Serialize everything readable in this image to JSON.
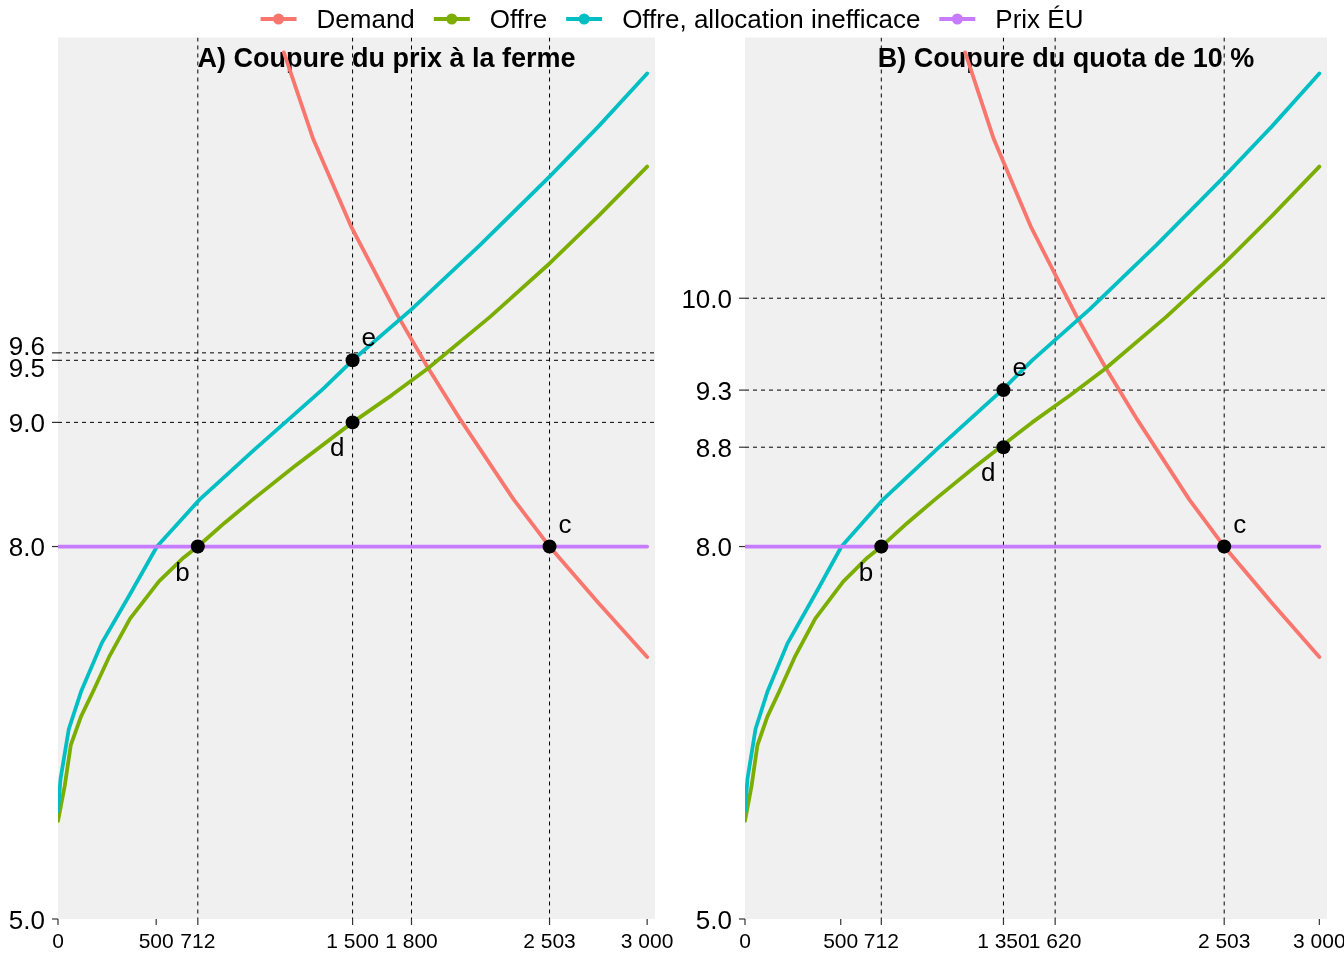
{
  "chart_data": [
    {
      "type": "line",
      "title": "A) Coupure du prix à la ferme",
      "legend": "top",
      "xlim": [
        0,
        3040
      ],
      "ylim": [
        5,
        12.1
      ],
      "xticks": [
        0,
        500,
        712,
        {
          "value": 1500,
          "label": "1 500"
        },
        {
          "value": 1800,
          "label": "1 800"
        },
        {
          "value": 2503,
          "label": "2 503"
        },
        {
          "value": 3000,
          "label": "3 000"
        }
      ],
      "yticks": [
        {
          "value": 5,
          "label": "5.0"
        },
        {
          "value": 8,
          "label": "8.0"
        },
        {
          "value": 9,
          "label": "9.0"
        },
        9.5,
        {
          "value": 9.56,
          "label": "9.6"
        }
      ],
      "series": [
        {
          "name": "Demand",
          "color": "#f8766d",
          "x": [
            1150,
            1300,
            1495,
            1730,
            1880,
            2050,
            2320,
            2503,
            2750,
            3000
          ],
          "values": [
            11.98,
            11.28,
            10.57,
            9.86,
            9.45,
            9.02,
            8.38,
            8.0,
            7.55,
            7.11
          ]
        },
        {
          "name": "Offre",
          "color": "#7cae00",
          "x": [
            0,
            34,
            65,
            117,
            178,
            263,
            367,
            514,
            639,
            712,
            848,
            993,
            1200,
            1500,
            1700,
            1880,
            2200,
            2503,
            2750,
            3000
          ],
          "values": [
            5.79,
            6.07,
            6.4,
            6.63,
            6.83,
            7.12,
            7.42,
            7.72,
            7.91,
            8.0,
            8.19,
            8.38,
            8.64,
            9.0,
            9.22,
            9.43,
            9.85,
            10.28,
            10.66,
            11.06
          ]
        },
        {
          "name": "Offre, allocation inefficace",
          "color": "#00bfc4",
          "x": [
            0,
            13,
            55,
            117,
            222,
            368,
            504,
            722,
            1000,
            1350,
            1500,
            1800,
            2150,
            2503,
            2750,
            3000
          ],
          "values": [
            5.87,
            6.13,
            6.53,
            6.83,
            7.22,
            7.62,
            8.0,
            8.38,
            8.78,
            9.27,
            9.5,
            9.91,
            10.43,
            10.98,
            11.38,
            11.81
          ]
        },
        {
          "name": "Prix ÉU",
          "color": "#c77cff",
          "x": [
            0,
            3000
          ],
          "values": [
            8,
            8
          ]
        },
        {
          "type": "scatter",
          "color": "#000000",
          "x": [
            712,
            2503,
            1500,
            1500
          ],
          "values": [
            8,
            8,
            9,
            9.5
          ]
        }
      ],
      "ref_lines": [
        {
          "axis": "x",
          "value": 712,
          "color": "#000000",
          "line_style": "dashed"
        },
        {
          "axis": "x",
          "value": 1500,
          "color": "#000000",
          "line_style": "dashed"
        },
        {
          "axis": "x",
          "value": 1800,
          "color": "#000000",
          "line_style": "dashed"
        },
        {
          "axis": "x",
          "value": 2503,
          "color": "#000000",
          "line_style": "dashed"
        },
        {
          "axis": "y",
          "value": 9,
          "color": "#000000",
          "line_style": "dashed"
        },
        {
          "axis": "y",
          "value": 9.5,
          "color": "#000000",
          "line_style": "dashed"
        },
        {
          "axis": "y",
          "value": 9.56,
          "color": "#000000",
          "line_style": "dashed"
        }
      ],
      "annotations": [
        {
          "text": "b",
          "x": 712,
          "y": 8
        },
        {
          "text": "c",
          "x": 2503,
          "y": 8
        },
        {
          "text": "d",
          "x": 1500,
          "y": 9
        },
        {
          "text": "e",
          "x": 1500,
          "y": 9.5
        }
      ]
    },
    {
      "type": "line",
      "title": "B) Coupure du quota de 10 %",
      "xlim": [
        0,
        3040
      ],
      "ylim": [
        5,
        12.1
      ],
      "xticks": [
        0,
        500,
        712,
        {
          "value": 1350,
          "label": "1 350"
        },
        {
          "value": 1620,
          "label": "1 620"
        },
        {
          "value": 2503,
          "label": "2 503"
        },
        {
          "value": 3000,
          "label": "3 000"
        }
      ],
      "yticks": [
        {
          "value": 5,
          "label": "5.0"
        },
        {
          "value": 8,
          "label": "8.0"
        },
        8.8,
        {
          "value": 9.26,
          "label": "9.3"
        },
        {
          "value": 10,
          "label": "10.0"
        }
      ],
      "series": [
        {
          "color": "#f8766d",
          "x": [
            1150,
            1300,
            1495,
            1730,
            1880,
            2050,
            2320,
            2503,
            2750,
            3000
          ],
          "values": [
            11.98,
            11.28,
            10.57,
            9.86,
            9.45,
            9.02,
            8.38,
            8.0,
            7.55,
            7.11
          ]
        },
        {
          "color": "#7cae00",
          "x": [
            0,
            34,
            65,
            117,
            178,
            263,
            367,
            514,
            639,
            712,
            848,
            993,
            1200,
            1500,
            1700,
            1880,
            2200,
            2503,
            2750,
            3000
          ],
          "values": [
            5.79,
            6.07,
            6.4,
            6.63,
            6.83,
            7.12,
            7.42,
            7.72,
            7.91,
            8.0,
            8.19,
            8.38,
            8.64,
            9.0,
            9.22,
            9.43,
            9.85,
            10.28,
            10.66,
            11.06
          ]
        },
        {
          "color": "#00bfc4",
          "x": [
            0,
            13,
            55,
            117,
            222,
            368,
            504,
            722,
            1000,
            1350,
            1500,
            1800,
            2150,
            2503,
            2750,
            3000
          ],
          "values": [
            5.87,
            6.13,
            6.53,
            6.83,
            7.22,
            7.62,
            8.0,
            8.38,
            8.78,
            9.27,
            9.5,
            9.91,
            10.43,
            10.98,
            11.38,
            11.81
          ]
        },
        {
          "color": "#c77cff",
          "x": [
            0,
            3000
          ],
          "values": [
            8,
            8
          ]
        },
        {
          "type": "scatter",
          "color": "#000000",
          "x": [
            712,
            2503,
            1350,
            1350
          ],
          "values": [
            8,
            8,
            8.8,
            9.26
          ]
        }
      ],
      "ref_lines": [
        {
          "axis": "x",
          "value": 712,
          "color": "#000000",
          "line_style": "dashed"
        },
        {
          "axis": "x",
          "value": 1350,
          "color": "#000000",
          "line_style": "dashed"
        },
        {
          "axis": "x",
          "value": 1620,
          "color": "#000000",
          "line_style": "dashed"
        },
        {
          "axis": "x",
          "value": 2503,
          "color": "#000000",
          "line_style": "dashed"
        },
        {
          "axis": "y",
          "value": 8.8,
          "color": "#000000",
          "line_style": "dashed"
        },
        {
          "axis": "y",
          "value": 9.26,
          "color": "#000000",
          "line_style": "dashed"
        },
        {
          "axis": "y",
          "value": 10,
          "color": "#000000",
          "line_style": "dashed"
        }
      ],
      "annotations": [
        {
          "text": "b",
          "x": 712,
          "y": 8
        },
        {
          "text": "c",
          "x": 2503,
          "y": 8
        },
        {
          "text": "d",
          "x": 1350,
          "y": 8.8
        },
        {
          "text": "e",
          "x": 1350,
          "y": 9.26
        }
      ]
    }
  ]
}
